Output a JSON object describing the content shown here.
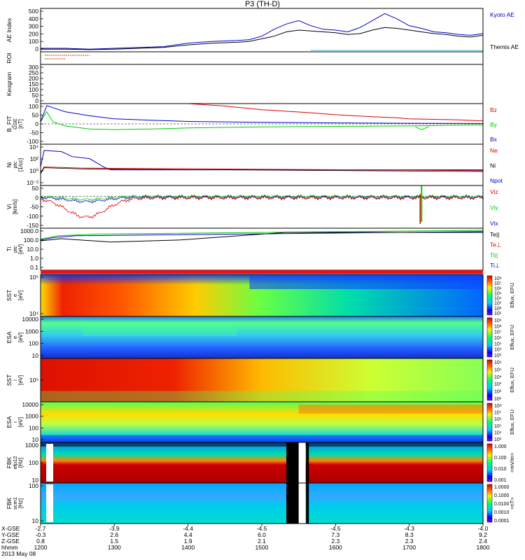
{
  "figure": {
    "title": "P3 (TH-D)",
    "date": "2013 May 08",
    "colors": {
      "red": "#dd0000",
      "green": "#00cc00",
      "blue": "#0000cc",
      "black": "#000000",
      "orange": "#cc3300",
      "cyan": "#00cccc"
    }
  },
  "chart_data": [
    {
      "panel": "ae",
      "type": "line",
      "ylabel": "AE Index",
      "ylim": [
        0,
        500
      ],
      "yticks": [
        "500",
        "400",
        "300",
        "200",
        "100",
        "0"
      ],
      "series": [
        {
          "name": "Kyoto AE",
          "color": "#0000cc",
          "x": [
            1200,
            1220,
            1240,
            1300,
            1340,
            1400,
            1420,
            1440,
            1450,
            1500,
            1510,
            1520,
            1530,
            1540,
            1550,
            1600,
            1610,
            1620,
            1630,
            1640,
            1650,
            1700,
            1710,
            1720,
            1730,
            1740,
            1750,
            1800
          ],
          "values": [
            40,
            40,
            30,
            40,
            60,
            100,
            120,
            130,
            140,
            180,
            260,
            320,
            360,
            300,
            260,
            250,
            230,
            280,
            360,
            440,
            380,
            300,
            270,
            230,
            220,
            200,
            190,
            210
          ]
        },
        {
          "name": "Themis AE",
          "color": "#000000",
          "x": [
            1200,
            1220,
            1240,
            1300,
            1340,
            1400,
            1420,
            1440,
            1450,
            1500,
            1510,
            1520,
            1530,
            1540,
            1550,
            1600,
            1610,
            1620,
            1630,
            1640,
            1650,
            1700,
            1710,
            1720,
            1730,
            1740,
            1750,
            1800
          ],
          "values": [
            30,
            30,
            25,
            30,
            50,
            80,
            100,
            110,
            120,
            150,
            180,
            230,
            250,
            240,
            230,
            220,
            200,
            210,
            250,
            280,
            270,
            250,
            230,
            210,
            200,
            180,
            170,
            190
          ]
        }
      ]
    },
    {
      "panel": "roi",
      "type": "bar",
      "ylabel": "ROI"
    },
    {
      "panel": "keogram",
      "type": "heatmap",
      "ylabel": "Keogram",
      "ylim": [
        0,
        300
      ],
      "yticks": [
        "300",
        "250",
        "200",
        "150",
        "100",
        "50",
        "0"
      ]
    },
    {
      "panel": "bfield",
      "type": "line",
      "ylabel": "B_FIT",
      "sublabel": "GSE",
      "unit": "[nT]",
      "ylim": [
        -100,
        100
      ],
      "yticks": [
        "100",
        "50",
        "0",
        "-50",
        "-100"
      ],
      "series": [
        {
          "name": "Bz",
          "color": "#dd0000",
          "x": [
            1400,
            1430,
            1500,
            1540,
            1600,
            1630,
            1650,
            1700,
            1740,
            1800
          ],
          "values": [
            100,
            88,
            70,
            55,
            45,
            35,
            30,
            25,
            20,
            15
          ]
        },
        {
          "name": "By",
          "color": "#00cc00",
          "x": [
            1200,
            1205,
            1210,
            1220,
            1240,
            1300,
            1330,
            1400,
            1500,
            1600,
            1700,
            1800
          ],
          "values": [
            10,
            60,
            10,
            -10,
            -25,
            -28,
            -25,
            -20,
            -15,
            -12,
            -10,
            -5
          ]
        },
        {
          "name": "Bx",
          "color": "#0000cc",
          "x": [
            1200,
            1205,
            1210,
            1220,
            1240,
            1300,
            1330,
            1400,
            1500,
            1600,
            1700,
            1800
          ],
          "values": [
            10,
            90,
            80,
            60,
            40,
            25,
            18,
            12,
            8,
            5,
            3,
            2
          ]
        }
      ]
    },
    {
      "panel": "density",
      "type": "line",
      "ylabel": "Ni",
      "sublabel": "ptc",
      "unit": "[1/cc]",
      "yticks": [
        "10⁴",
        "10²",
        "10⁰",
        "10⁻²"
      ],
      "series": [
        {
          "name": "Ne",
          "color": "#dd0000"
        },
        {
          "name": "Ni",
          "color": "#000000"
        },
        {
          "name": "Npot",
          "color": "#0000cc"
        }
      ]
    },
    {
      "panel": "velocity",
      "type": "line",
      "ylabel": "Vi",
      "unit": "[km/s]",
      "ylim": [
        -150,
        50
      ],
      "yticks": [
        "50",
        "0",
        "-50",
        "-100",
        "-150"
      ],
      "series": [
        {
          "name": "Viz",
          "color": "#dd0000"
        },
        {
          "name": "Viy",
          "color": "#00cc00"
        },
        {
          "name": "Vix",
          "color": "#0000cc"
        }
      ]
    },
    {
      "panel": "temperature",
      "type": "line",
      "ylabel": "Ti",
      "sublabel": "ptc",
      "unit": "[eV]",
      "yticks": [
        "1000.0",
        "100.0",
        "10.0",
        "1.0",
        "0.1"
      ],
      "series": [
        {
          "name": "Te||",
          "color": "#000000"
        },
        {
          "name": "Te⊥",
          "color": "#dd0000"
        },
        {
          "name": "Ti||",
          "color": "#00cc00"
        },
        {
          "name": "Ti⊥",
          "color": "#0000cc"
        }
      ]
    },
    {
      "panel": "sst_e",
      "type": "heatmap",
      "ylabel": "SST",
      "sublabel": "e",
      "unit": "[eV]",
      "yticks": [
        "10⁵",
        "10⁴"
      ],
      "cbar_label": "Eflux, EFU",
      "cbar_ticks": [
        "10⁸",
        "10⁷",
        "10⁶",
        "10⁵",
        "10⁴",
        "10³",
        "10²",
        "10¹"
      ]
    },
    {
      "panel": "esa_e",
      "type": "heatmap",
      "ylabel": "ESA",
      "sublabel": "e",
      "unit": "[eV]",
      "yticks": [
        "10000",
        "1000",
        "100",
        "10"
      ],
      "cbar_label": "Eflux, EFU",
      "cbar_ticks": [
        "10⁹",
        "10⁸",
        "10⁷",
        "10⁶",
        "10⁵",
        "10⁴",
        "10³"
      ]
    },
    {
      "panel": "sst_i",
      "type": "heatmap",
      "ylabel": "SST",
      "sublabel": "i",
      "unit": "[eV]",
      "yticks": [
        "10⁵"
      ],
      "cbar_label": "Eflux, EFU",
      "cbar_ticks": [
        "10⁶",
        "10⁵",
        "10⁴",
        "10³",
        "10²",
        "10¹"
      ]
    },
    {
      "panel": "esa_i",
      "type": "heatmap",
      "ylabel": "ESA",
      "sublabel": "i",
      "unit": "[eV]",
      "yticks": [
        "10000",
        "1000",
        "100",
        "10"
      ],
      "cbar_label": "Eflux, EFU",
      "cbar_ticks": [
        "10⁸",
        "10⁷",
        "10⁶",
        "10⁵",
        "10⁴",
        "10³"
      ]
    },
    {
      "panel": "fbk_e",
      "type": "heatmap",
      "ylabel": "FBK",
      "sublabel": "efp12",
      "unit": "[Hz]",
      "yticks": [
        "1000",
        "100",
        "10"
      ],
      "cbar_label": "<mV/m>",
      "cbar_ticks": [
        "1.000",
        "0.100",
        "0.010",
        "0.001"
      ]
    },
    {
      "panel": "fbk_b",
      "type": "heatmap",
      "ylabel": "FBK",
      "sublabel": "scm1",
      "unit": "[Hz]",
      "yticks": [
        "100",
        "10"
      ],
      "cbar_label": "<nT>",
      "cbar_ticks": [
        "1.0000",
        "0.1000",
        "0.0100",
        "0.0010",
        "0.0001"
      ]
    }
  ],
  "xaxis": {
    "row_labels": [
      "X-GSE",
      "Y-GSE",
      "Z-GSE",
      "hhmm",
      "2013 May 08"
    ],
    "ticks": [
      {
        "vals": [
          "-2.7",
          "-0.3",
          "0.8",
          "1200"
        ]
      },
      {
        "vals": [
          "-3.9",
          "2.6",
          "1.5",
          "1300"
        ]
      },
      {
        "vals": [
          "-4.4",
          "4.4",
          "1.9",
          "1400"
        ]
      },
      {
        "vals": [
          "-4.5",
          "6.0",
          "2.1",
          "1500"
        ]
      },
      {
        "vals": [
          "-4.5",
          "7.3",
          "2.3",
          "1600"
        ]
      },
      {
        "vals": [
          "-4.3",
          "8.3",
          "2.3",
          "1700"
        ]
      },
      {
        "vals": [
          "-4.0",
          "9.2",
          "2.4",
          "1800"
        ]
      }
    ]
  }
}
